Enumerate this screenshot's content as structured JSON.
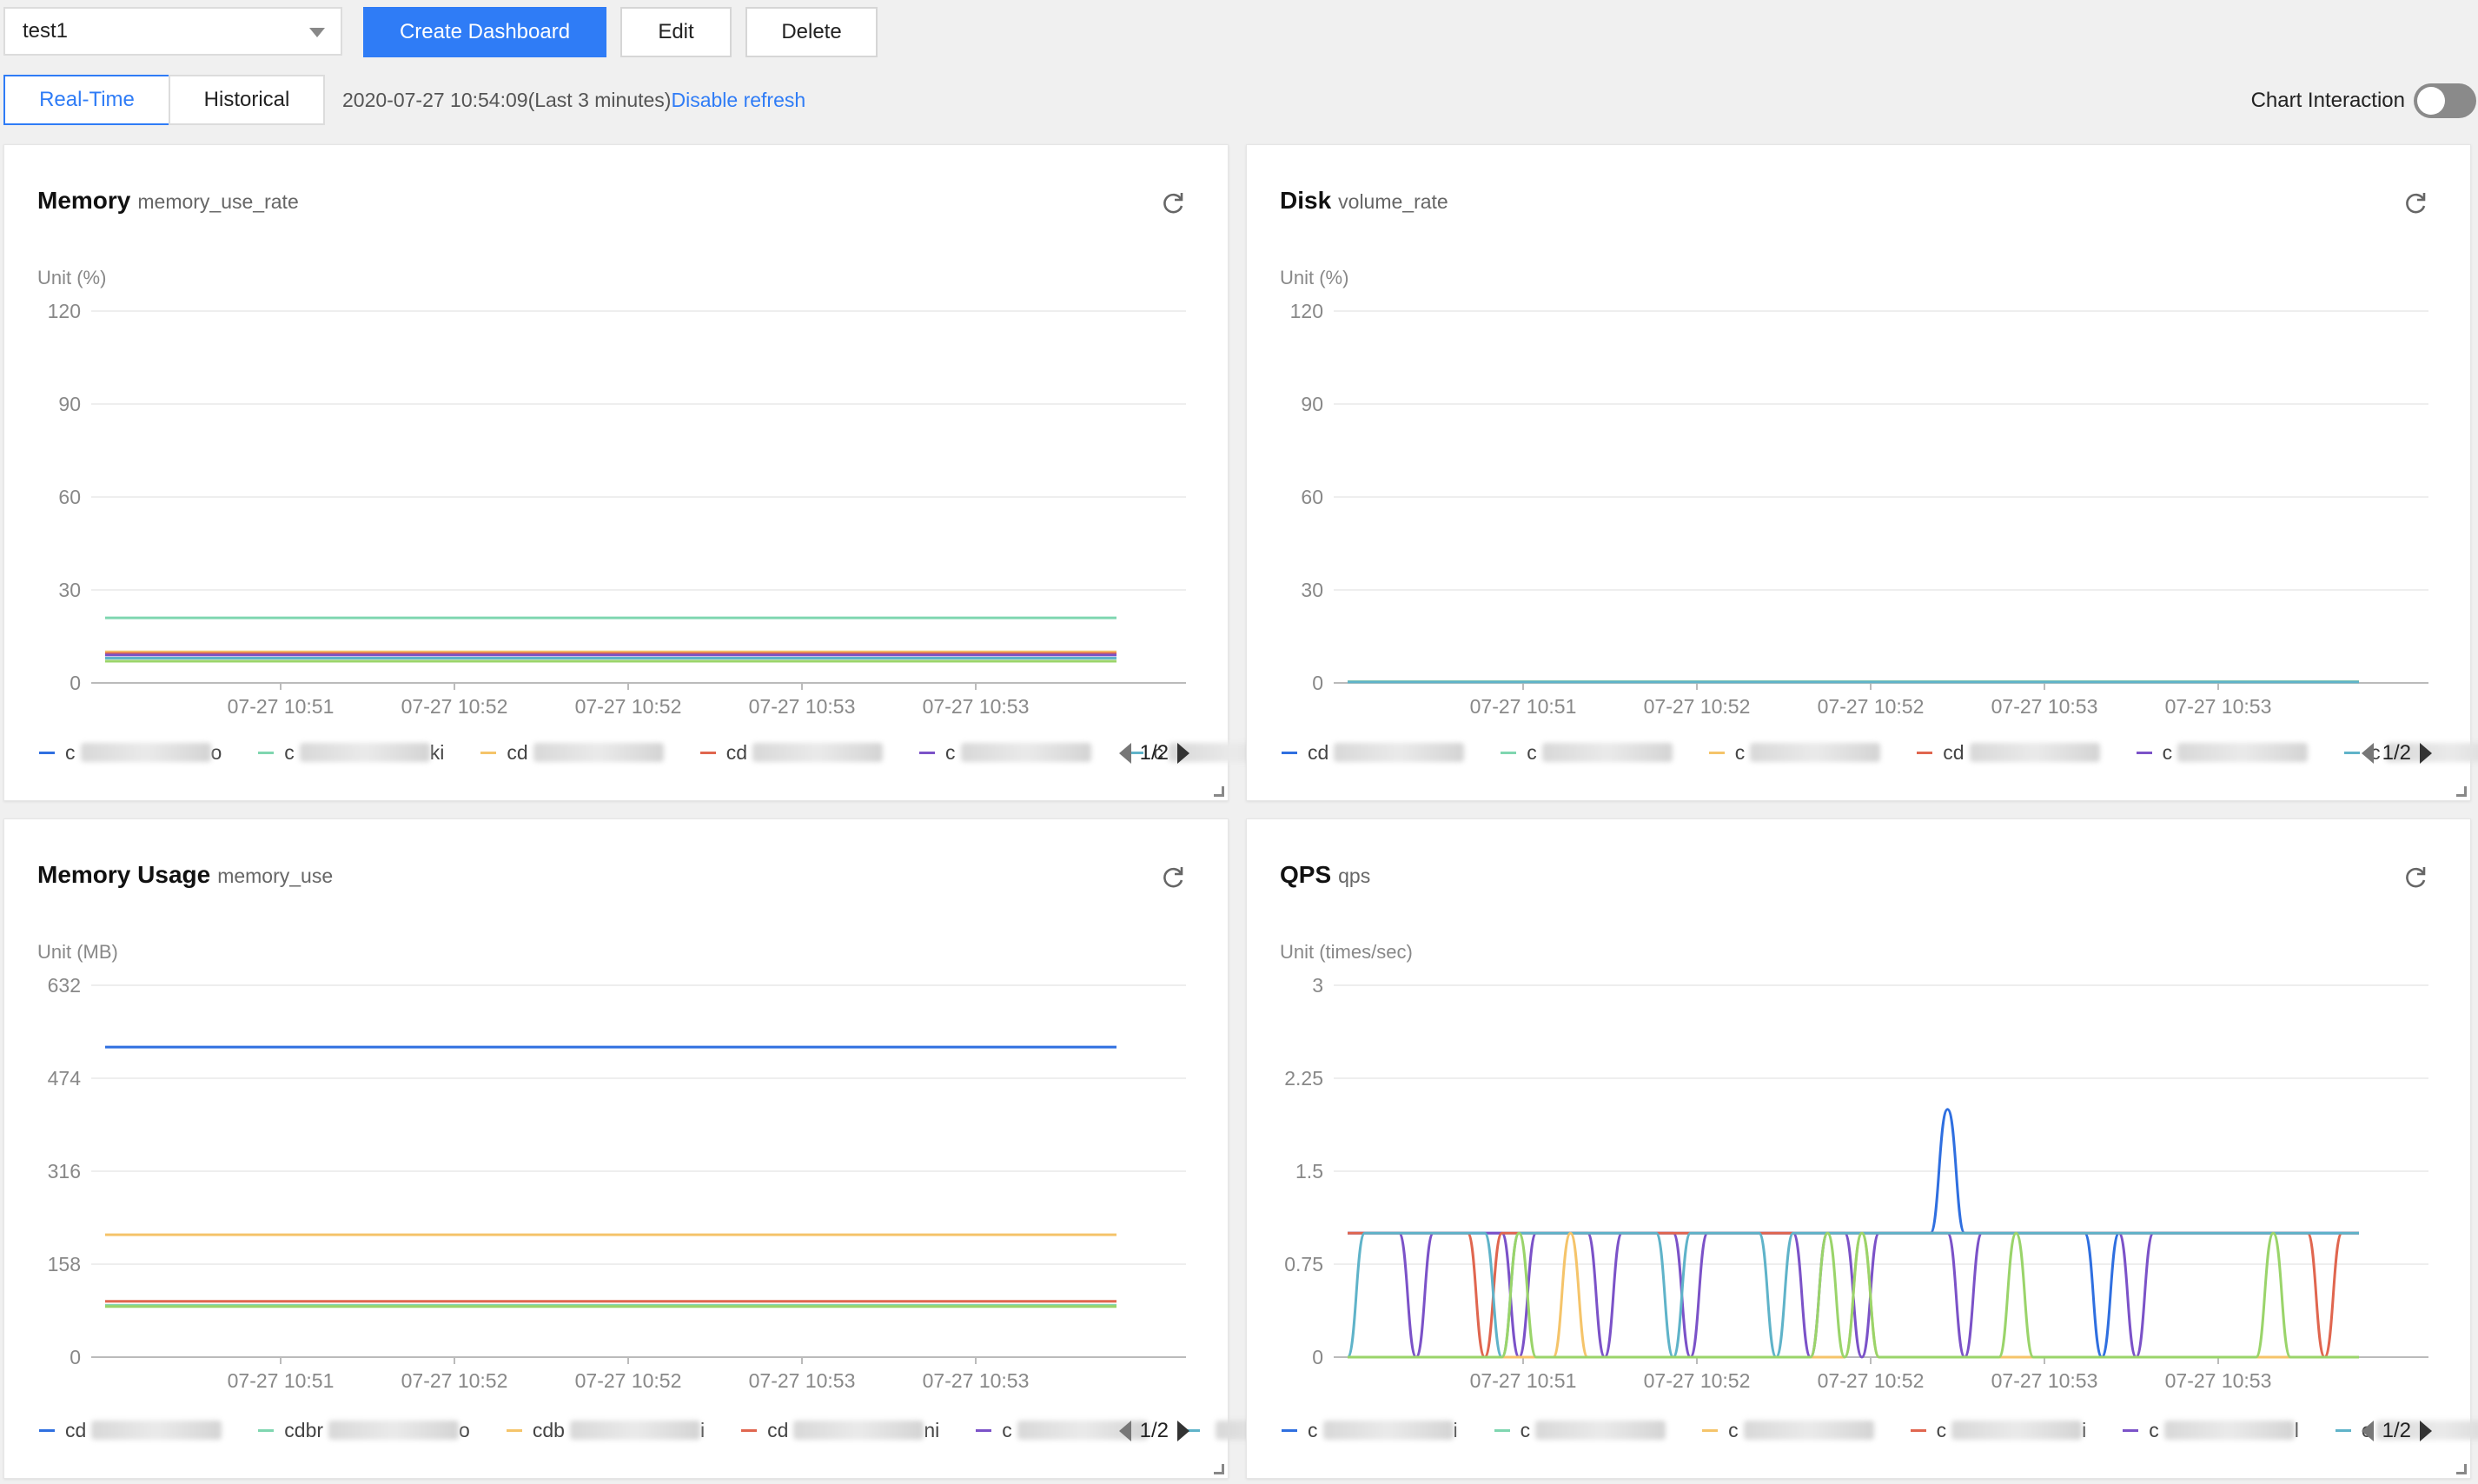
{
  "toolbar": {
    "dashboard_select": "test1",
    "create_label": "Create Dashboard",
    "edit_label": "Edit",
    "delete_label": "Delete"
  },
  "mode_tabs": [
    {
      "label": "Real-Time",
      "active": true
    },
    {
      "label": "Historical",
      "active": false
    }
  ],
  "refresh": {
    "timestamp": "2020-07-27 10:54:09(Last 3 minutes)",
    "disable_label": "Disable refresh"
  },
  "interaction": {
    "label": "Chart Interaction",
    "enabled": false
  },
  "colors": {
    "accent": "#2f7cf6",
    "series": [
      "#2f6fe0",
      "#7fd6b0",
      "#f5c46a",
      "#e0664f",
      "#7b52c8",
      "#5fb3c9",
      "#9ad46a"
    ]
  },
  "panels": [
    {
      "title": "Memory",
      "metric": "memory_use_rate",
      "unit": "Unit (%)",
      "pager": "1/2",
      "legend": [
        {
          "prefix": "c",
          "suffix": "o"
        },
        {
          "prefix": "c",
          "suffix": "ki"
        },
        {
          "prefix": "cd",
          "suffix": ""
        },
        {
          "prefix": "cd",
          "suffix": ""
        },
        {
          "prefix": "c",
          "suffix": ""
        },
        {
          "prefix": "c",
          "suffix": ""
        }
      ],
      "chart_data": {
        "type": "line",
        "ylabel": "Unit (%)",
        "ylim": [
          0,
          120
        ],
        "yticks": [
          0,
          30,
          60,
          90,
          120
        ],
        "xticks": [
          "07-27 10:51",
          "07-27 10:52",
          "07-27 10:52",
          "07-27 10:53",
          "07-27 10:53"
        ],
        "series": [
          {
            "color": "#7fd6b0",
            "values": [
              21,
              21
            ]
          },
          {
            "color": "#f5c46a",
            "values": [
              10,
              10
            ]
          },
          {
            "color": "#e0664f",
            "values": [
              9.5,
              9.5
            ]
          },
          {
            "color": "#7b52c8",
            "values": [
              9,
              9
            ]
          },
          {
            "color": "#5fb3c9",
            "values": [
              8,
              8
            ]
          },
          {
            "color": "#9ad46a",
            "values": [
              7,
              7
            ]
          }
        ]
      }
    },
    {
      "title": "Disk",
      "metric": "volume_rate",
      "unit": "Unit (%)",
      "pager": "1/2",
      "legend": [
        {
          "prefix": "cd",
          "suffix": ""
        },
        {
          "prefix": "c",
          "suffix": ""
        },
        {
          "prefix": "c",
          "suffix": ""
        },
        {
          "prefix": "cd",
          "suffix": ""
        },
        {
          "prefix": "c",
          "suffix": ""
        },
        {
          "prefix": "c",
          "suffix": ""
        }
      ],
      "chart_data": {
        "type": "line",
        "ylabel": "Unit (%)",
        "ylim": [
          0,
          120
        ],
        "yticks": [
          0,
          30,
          60,
          90,
          120
        ],
        "xticks": [
          "07-27 10:51",
          "07-27 10:52",
          "07-27 10:52",
          "07-27 10:53",
          "07-27 10:53"
        ],
        "series": [
          {
            "color": "#9ad46a",
            "values": [
              0.4,
              0.4
            ]
          },
          {
            "color": "#5fb3c9",
            "values": [
              0.3,
              0.3
            ]
          }
        ]
      }
    },
    {
      "title": "Memory Usage",
      "metric": "memory_use",
      "unit": "Unit (MB)",
      "pager": "1/2",
      "legend": [
        {
          "prefix": "cd",
          "suffix": ""
        },
        {
          "prefix": "cdbr",
          "suffix": "o"
        },
        {
          "prefix": "cdb",
          "suffix": "i"
        },
        {
          "prefix": "cd",
          "suffix": "ni"
        },
        {
          "prefix": "c",
          "suffix": ""
        },
        {
          "prefix": "",
          "suffix": ""
        }
      ],
      "chart_data": {
        "type": "line",
        "ylabel": "Unit (MB)",
        "ylim": [
          0,
          632
        ],
        "yticks": [
          0,
          158,
          316,
          474,
          632
        ],
        "xticks": [
          "07-27 10:51",
          "07-27 10:52",
          "07-27 10:52",
          "07-27 10:53",
          "07-27 10:53"
        ],
        "series": [
          {
            "color": "#2f6fe0",
            "values": [
              527,
              527
            ]
          },
          {
            "color": "#f5c46a",
            "values": [
              208,
              208
            ]
          },
          {
            "color": "#e0664f",
            "values": [
              95,
              95
            ]
          },
          {
            "color": "#7fd6b0",
            "values": [
              88,
              88
            ]
          },
          {
            "color": "#9ad46a",
            "values": [
              86,
              86
            ]
          }
        ]
      }
    },
    {
      "title": "QPS",
      "metric": "qps",
      "unit": "Unit (times/sec)",
      "pager": "1/2",
      "legend": [
        {
          "prefix": "c",
          "suffix": "i"
        },
        {
          "prefix": "c",
          "suffix": ""
        },
        {
          "prefix": "c",
          "suffix": ""
        },
        {
          "prefix": "c",
          "suffix": "i"
        },
        {
          "prefix": "c",
          "suffix": "l"
        },
        {
          "prefix": "c",
          "suffix": ""
        }
      ],
      "chart_data": {
        "type": "line",
        "ylabel": "Unit (times/sec)",
        "ylim": [
          0,
          3
        ],
        "yticks": [
          0,
          0.75,
          1.5,
          2.25,
          3
        ],
        "xticks": [
          "07-27 10:51",
          "07-27 10:52",
          "07-27 10:52",
          "07-27 10:53",
          "07-27 10:53"
        ],
        "series": [
          {
            "color": "#2f6fe0",
            "values": [
              1,
              1,
              1,
              1,
              1,
              1,
              1,
              1,
              1,
              1,
              1,
              1,
              1,
              1,
              1,
              1,
              1,
              1,
              1,
              1,
              1,
              1,
              1,
              1,
              1,
              1,
              1,
              1,
              1,
              1,
              1,
              1,
              1,
              1,
              1,
              2,
              1,
              1,
              1,
              1,
              1,
              1,
              1,
              1,
              0,
              1,
              1,
              1,
              1,
              1,
              1,
              1,
              1,
              1,
              1,
              1,
              1,
              1,
              1,
              1
            ]
          },
          {
            "color": "#7b52c8",
            "values": [
              1,
              1,
              1,
              1,
              0,
              1,
              1,
              1,
              1,
              1,
              0,
              1,
              1,
              1,
              1,
              0,
              1,
              1,
              1,
              1,
              0,
              1,
              1,
              1,
              1,
              1,
              1,
              0,
              1,
              1,
              0,
              1,
              1,
              1,
              1,
              1,
              0,
              1,
              1,
              1,
              1,
              1,
              1,
              1,
              1,
              1,
              0,
              1,
              1,
              1,
              1,
              1,
              1,
              1,
              1,
              1,
              1,
              1,
              1,
              1
            ]
          },
          {
            "color": "#e0664f",
            "values": [
              1,
              1,
              1,
              1,
              1,
              1,
              1,
              1,
              0,
              1,
              1,
              1,
              1,
              1,
              1,
              1,
              1,
              1,
              1,
              1,
              1,
              1,
              1,
              1,
              1,
              1,
              1,
              1,
              1,
              1,
              1,
              1,
              1,
              1,
              1,
              1,
              1,
              1,
              1,
              1,
              1,
              1,
              1,
              1,
              1,
              1,
              1,
              1,
              1,
              1,
              1,
              1,
              1,
              1,
              1,
              1,
              1,
              0,
              1,
              1
            ]
          },
          {
            "color": "#5fb3c9",
            "values": [
              0,
              1,
              1,
              1,
              1,
              1,
              1,
              1,
              1,
              0,
              1,
              1,
              1,
              1,
              1,
              1,
              1,
              1,
              1,
              0,
              1,
              1,
              1,
              1,
              1,
              0,
              1,
              1,
              1,
              1,
              1,
              1,
              1,
              1,
              1,
              1,
              1,
              1,
              1,
              1,
              1,
              1,
              1,
              1,
              1,
              1,
              1,
              1,
              1,
              1,
              1,
              1,
              1,
              1,
              1,
              1,
              1,
              1,
              1,
              1
            ]
          },
          {
            "color": "#f5c46a",
            "values": [
              0,
              0,
              0,
              0,
              0,
              0,
              0,
              0,
              0,
              0,
              0,
              0,
              0,
              1,
              0,
              0,
              0,
              0,
              0,
              0,
              0,
              0,
              0,
              0,
              0,
              0,
              0,
              0,
              0,
              0,
              1,
              0,
              0,
              0,
              0,
              0,
              0,
              0,
              0,
              0,
              0,
              0,
              0,
              0,
              0,
              0,
              0,
              0,
              0,
              0,
              0,
              0,
              0,
              0,
              0,
              0,
              0,
              0,
              0,
              0
            ]
          },
          {
            "color": "#9ad46a",
            "values": [
              0,
              0,
              0,
              0,
              0,
              0,
              0,
              0,
              0,
              0,
              1,
              0,
              0,
              0,
              0,
              0,
              0,
              0,
              0,
              0,
              0,
              0,
              0,
              0,
              0,
              0,
              0,
              0,
              1,
              0,
              1,
              0,
              0,
              0,
              0,
              0,
              0,
              0,
              0,
              1,
              0,
              0,
              0,
              0,
              0,
              0,
              0,
              0,
              0,
              0,
              0,
              0,
              0,
              0,
              1,
              0,
              0,
              0,
              0,
              0
            ]
          }
        ]
      }
    }
  ]
}
